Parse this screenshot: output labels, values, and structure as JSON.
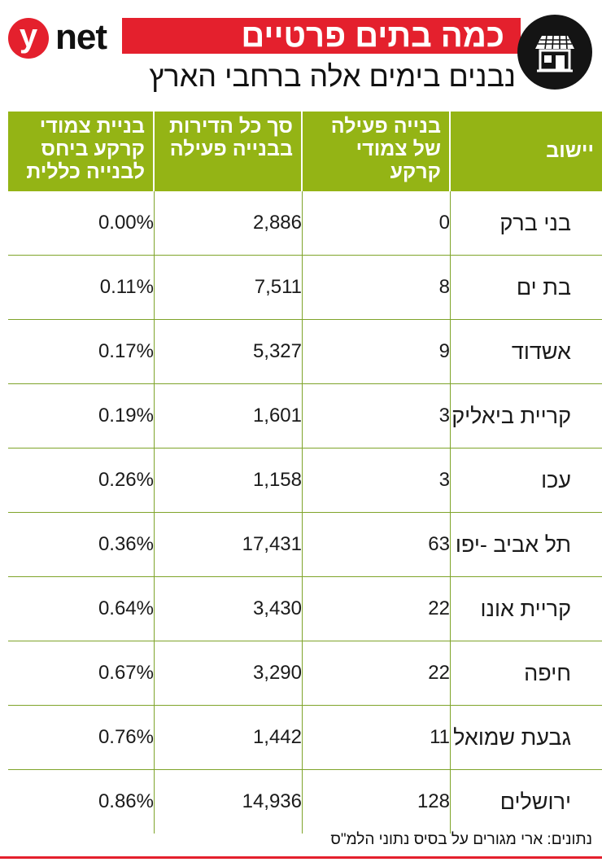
{
  "brand": {
    "y": "y",
    "net": "net"
  },
  "title": "כמה בתים פרטיים",
  "subtitle": "נבנים בימים אלה ברחבי הארץ",
  "icon": "house-icon",
  "colors": {
    "accent_red": "#e4202d",
    "header_green": "#94b415",
    "rule_green": "#7fa42a"
  },
  "chart_data": {
    "type": "table",
    "columns": [
      "יישוב",
      "בנייה פעילה של צמודי קרקע",
      "סך כל הדירות בבנייה פעילה",
      "בניית צמודי קרקע ביחס לבנייה כללית"
    ],
    "rows": [
      {
        "city": "בני ברק",
        "active": "0",
        "total": "2,886",
        "ratio": "0.00%"
      },
      {
        "city": "בת ים",
        "active": "8",
        "total": "7,511",
        "ratio": "0.11%"
      },
      {
        "city": "אשדוד",
        "active": "9",
        "total": "5,327",
        "ratio": "0.17%"
      },
      {
        "city": "קריית ביאליק",
        "active": "3",
        "total": "1,601",
        "ratio": "0.19%"
      },
      {
        "city": "עכו",
        "active": "3",
        "total": "1,158",
        "ratio": "0.26%"
      },
      {
        "city": "תל אביב -יפו",
        "active": "63",
        "total": "17,431",
        "ratio": "0.36%"
      },
      {
        "city": "קריית אונו",
        "active": "22",
        "total": "3,430",
        "ratio": "0.64%"
      },
      {
        "city": "חיפה",
        "active": "22",
        "total": "3,290",
        "ratio": "0.67%"
      },
      {
        "city": "גבעת שמואל",
        "active": "11",
        "total": "1,442",
        "ratio": "0.76%"
      },
      {
        "city": "ירושלים",
        "active": "128",
        "total": "14,936",
        "ratio": "0.86%"
      }
    ]
  },
  "source": "נתונים: ארי מגורים על בסיס נתוני הלמ\"ס"
}
